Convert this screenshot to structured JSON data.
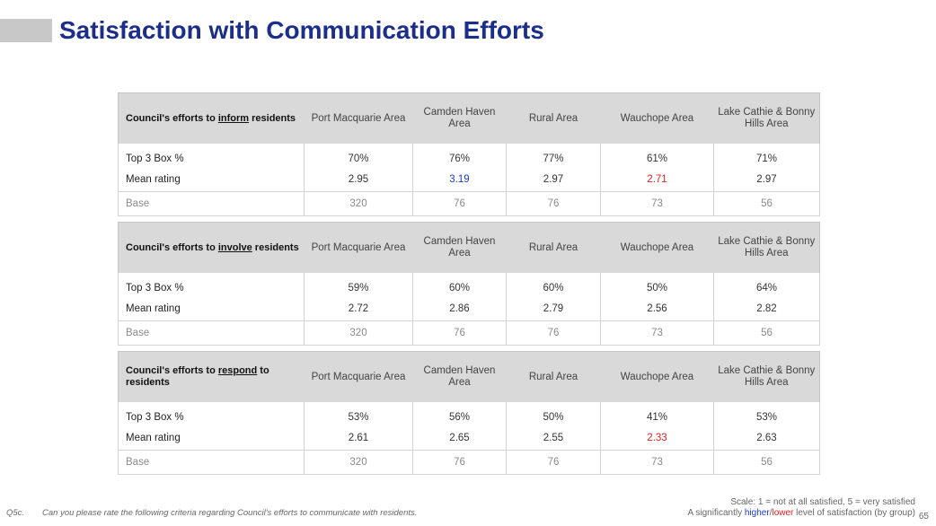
{
  "title": "Satisfaction with Communication Efforts",
  "columns": [
    "Port Macquarie Area",
    "Camden Haven Area",
    "Rural Area",
    "Wauchope Area",
    "Lake Cathie & Bonny Hills Area"
  ],
  "columns_split": [
    [
      "Port Macquarie Area",
      ""
    ],
    [
      "Camden Haven",
      "Area"
    ],
    [
      "Rural Area",
      ""
    ],
    [
      "Wauchope Area",
      ""
    ],
    [
      "Lake Cathie & Bonny",
      "Hills Area"
    ]
  ],
  "tables": [
    {
      "label_pre": "Council's efforts to ",
      "label_key": "inform",
      "label_post": " residents",
      "rows": [
        {
          "label": "Top 3 Box %",
          "values": [
            "70%",
            "76%",
            "77%",
            "61%",
            "71%"
          ],
          "flags": [
            "",
            "",
            "",
            "",
            ""
          ]
        },
        {
          "label": "Mean rating",
          "values": [
            "2.95",
            "3.19",
            "2.97",
            "2.71",
            "2.97"
          ],
          "flags": [
            "",
            "higher",
            "",
            "lower",
            ""
          ]
        },
        {
          "label": "Base",
          "values": [
            "320",
            "76",
            "76",
            "73",
            "56"
          ],
          "flags": [
            "",
            "",
            "",
            "",
            ""
          ]
        }
      ]
    },
    {
      "label_pre": "Council's efforts to ",
      "label_key": "involve",
      "label_post": " residents",
      "rows": [
        {
          "label": "Top 3 Box %",
          "values": [
            "59%",
            "60%",
            "60%",
            "50%",
            "64%"
          ],
          "flags": [
            "",
            "",
            "",
            "",
            ""
          ]
        },
        {
          "label": "Mean rating",
          "values": [
            "2.72",
            "2.86",
            "2.79",
            "2.56",
            "2.82"
          ],
          "flags": [
            "",
            "",
            "",
            "",
            ""
          ]
        },
        {
          "label": "Base",
          "values": [
            "320",
            "76",
            "76",
            "73",
            "56"
          ],
          "flags": [
            "",
            "",
            "",
            "",
            ""
          ]
        }
      ]
    },
    {
      "label_pre": "Council's efforts to ",
      "label_key": "respond",
      "label_post": " to residents",
      "rows": [
        {
          "label": "Top 3 Box %",
          "values": [
            "53%",
            "56%",
            "50%",
            "41%",
            "53%"
          ],
          "flags": [
            "",
            "",
            "",
            "",
            ""
          ]
        },
        {
          "label": "Mean rating",
          "values": [
            "2.61",
            "2.65",
            "2.55",
            "2.33",
            "2.63"
          ],
          "flags": [
            "",
            "",
            "",
            "lower",
            ""
          ]
        },
        {
          "label": "Base",
          "values": [
            "320",
            "76",
            "76",
            "73",
            "56"
          ],
          "flags": [
            "",
            "",
            "",
            "",
            ""
          ]
        }
      ]
    }
  ],
  "footnote": {
    "question_code": "Q5c.",
    "question_text": "Can you please rate the following criteria regarding Council's efforts to communicate with residents.",
    "scale_text": "Scale: 1 = not at all satisfied, 5 = very satisfied",
    "sig_pre": "A significantly ",
    "sig_higher": "higher",
    "sig_slash": "/",
    "sig_lower": "lower",
    "sig_post": " level of satisfaction (by group)"
  },
  "page_number": "65",
  "colors": {
    "title": "#1a2e8a",
    "higher": "#1a3ccf",
    "lower": "#e0201e",
    "header_bg": "#d9d9d9"
  }
}
